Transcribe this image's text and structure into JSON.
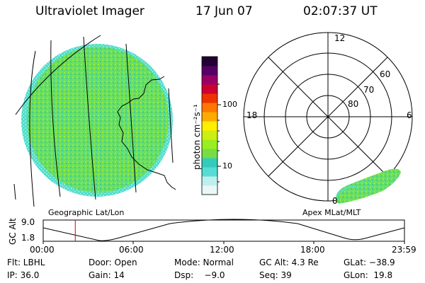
{
  "header": {
    "instrument": "Ultraviolet Imager",
    "date": "17 Jun 07",
    "time": "02:07:37 UT"
  },
  "colorbar": {
    "label": "photon cm⁻²s⁻¹",
    "ticks": [
      "100",
      "10"
    ],
    "scale": "log",
    "colors": [
      "#eaf7f7",
      "#bfeeee",
      "#55ddd5",
      "#33ccbb",
      "#77dd44",
      "#99ee22",
      "#ccee11",
      "#ffee00",
      "#ffaa00",
      "#ff7700",
      "#ee3300",
      "#cc0033",
      "#990066",
      "#550066",
      "#220033"
    ]
  },
  "left_panel": {
    "caption": "Geographic Lat/Lon",
    "fill_color": "#55dd77"
  },
  "right_panel": {
    "caption": "Apex MLat/MLT",
    "mlt_labels": {
      "top": "12",
      "left": "18",
      "right": "6",
      "bottom": "0"
    },
    "lat_labels": [
      "60",
      "70",
      "80"
    ]
  },
  "altitude_plot": {
    "ylabel": "GC Alt",
    "yticks": [
      "9.0",
      "1.8"
    ],
    "xticks": [
      "00:00",
      "06:00",
      "12:00",
      "18:00",
      "23:59"
    ],
    "current_time_marker_hours": 2.13,
    "marker_color": "#dd0000"
  },
  "status": {
    "filter": "Flt: LBHL",
    "door": "Door: Open",
    "mode": "Mode: Normal",
    "gc_alt": "GC Alt: 4.3 Re",
    "glat": "GLat: −38.9",
    "ip": "IP: 36.0",
    "gain": "Gain: 14",
    "dsp": "Dsp:    −9.0",
    "seq": "Seq: 39",
    "glon": "GLon:  19.8"
  }
}
